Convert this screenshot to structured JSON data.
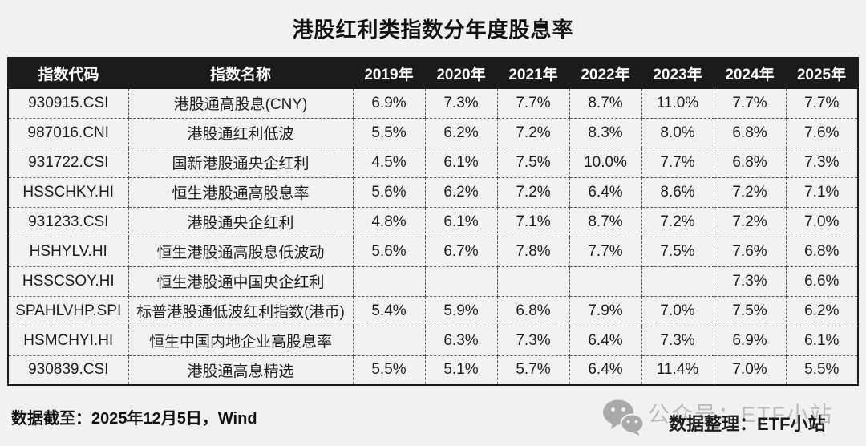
{
  "chart_data": {
    "type": "table",
    "title": "港股红利类指数分年度股息率",
    "columns": [
      "指数代码",
      "指数名称",
      "2019年",
      "2020年",
      "2021年",
      "2022年",
      "2023年",
      "2024年",
      "2025年"
    ],
    "rows": [
      {
        "code": "930915.CSI",
        "name": "港股通高股息(CNY)",
        "values": [
          "6.9%",
          "7.3%",
          "7.7%",
          "8.7%",
          "11.0%",
          "7.7%",
          "7.7%"
        ]
      },
      {
        "code": "987016.CNI",
        "name": "港股通红利低波",
        "values": [
          "5.5%",
          "6.2%",
          "7.2%",
          "8.3%",
          "8.0%",
          "6.8%",
          "7.6%"
        ]
      },
      {
        "code": "931722.CSI",
        "name": "国新港股通央企红利",
        "values": [
          "4.5%",
          "6.1%",
          "7.5%",
          "10.0%",
          "7.7%",
          "6.8%",
          "7.3%"
        ]
      },
      {
        "code": "HSSCHKY.HI",
        "name": "恒生港股通高股息率",
        "values": [
          "5.6%",
          "6.2%",
          "7.2%",
          "6.4%",
          "8.6%",
          "7.2%",
          "7.1%"
        ]
      },
      {
        "code": "931233.CSI",
        "name": "港股通央企红利",
        "values": [
          "4.8%",
          "6.1%",
          "7.1%",
          "8.7%",
          "7.2%",
          "7.2%",
          "7.0%"
        ]
      },
      {
        "code": "HSHYLV.HI",
        "name": "恒生港股通高股息低波动",
        "values": [
          "5.6%",
          "6.7%",
          "7.8%",
          "7.7%",
          "7.5%",
          "7.6%",
          "6.8%"
        ]
      },
      {
        "code": "HSSCSOY.HI",
        "name": "恒生港股通中国央企红利",
        "values": [
          "",
          "",
          "",
          "",
          "",
          "7.3%",
          "6.6%"
        ]
      },
      {
        "code": "SPAHLVHP.SPI",
        "name": "标普港股通低波红利指数(港币)",
        "values": [
          "5.4%",
          "5.9%",
          "6.8%",
          "7.9%",
          "7.0%",
          "7.5%",
          "6.2%"
        ]
      },
      {
        "code": "HSMCHYI.HI",
        "name": "恒生中国内地企业高股息率",
        "values": [
          "",
          "6.3%",
          "7.3%",
          "6.4%",
          "7.3%",
          "6.9%",
          "6.1%"
        ]
      },
      {
        "code": "930839.CSI",
        "name": "港股通高息精选",
        "values": [
          "5.5%",
          "5.1%",
          "5.7%",
          "6.4%",
          "11.4%",
          "7.0%",
          "5.5%"
        ]
      }
    ]
  },
  "footer": {
    "data_cutoff": "数据截至：2025年12月5日，Wind",
    "credit": "数据整理：ETF小站",
    "watermark": "公众号：ETF小站",
    "icon": "wechat-icon"
  },
  "colors": {
    "page_bg": "#f1f1f1",
    "header_bg": "#1b1b1b",
    "header_text": "#ffffff",
    "cell_bg": "#f2f2f2",
    "cell_text": "#1d1d1d",
    "border_outer": "#1a1a1a",
    "border_inner_dashed": "#5a5a5a",
    "watermark_grey": "#bcbcbc"
  }
}
